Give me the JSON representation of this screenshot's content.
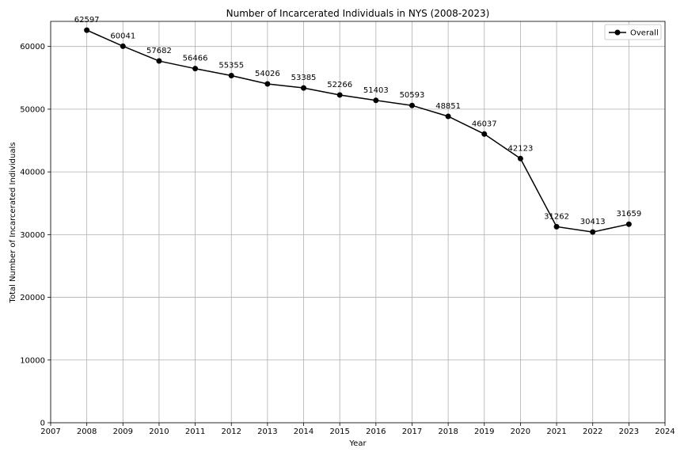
{
  "chart_data": {
    "type": "line",
    "title": "Number of Incarcerated Individuals in NYS (2008-2023)",
    "xlabel": "Year",
    "ylabel": "Total Number of Incarcerated Individuals",
    "xlim": [
      2007,
      2024
    ],
    "ylim": [
      0,
      64000
    ],
    "xticks": [
      2007,
      2008,
      2009,
      2010,
      2011,
      2012,
      2013,
      2014,
      2015,
      2016,
      2017,
      2018,
      2019,
      2020,
      2021,
      2022,
      2023,
      2024
    ],
    "yticks": [
      0,
      10000,
      20000,
      30000,
      40000,
      50000,
      60000
    ],
    "grid": true,
    "legend_position": "top-right",
    "colors": {
      "line": "#000000",
      "grid": "#b0b0b0"
    },
    "series": [
      {
        "name": "Overall",
        "x": [
          2008,
          2009,
          2010,
          2011,
          2012,
          2013,
          2014,
          2015,
          2016,
          2017,
          2018,
          2019,
          2020,
          2021,
          2022,
          2023
        ],
        "values": [
          62597,
          60041,
          57682,
          56466,
          55355,
          54026,
          53385,
          52266,
          51403,
          50593,
          48851,
          46037,
          42123,
          31262,
          30413,
          31659
        ]
      }
    ]
  }
}
